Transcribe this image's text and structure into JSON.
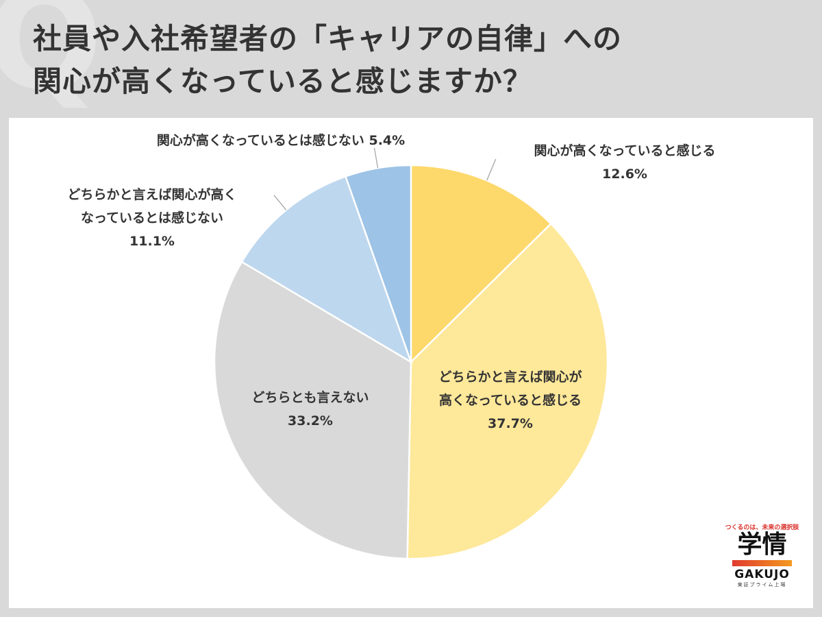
{
  "title": {
    "line1": "社員や入社希望者の「キャリアの自律」への",
    "line2": "関心が高くなっていると感じますか？"
  },
  "chart_data": {
    "type": "pie",
    "start": "12 o'clock, clockwise",
    "slices": [
      {
        "lines": [
          "関心が高くなっていると感じる"
        ],
        "pct": "12.6%",
        "value": 12.6,
        "color": "#fdd86b"
      },
      {
        "lines": [
          "どちらかと言えば関心が",
          "高くなっていると感じる"
        ],
        "pct": "37.7%",
        "value": 37.7,
        "color": "#fee89a"
      },
      {
        "lines": [
          "どちらとも言えない"
        ],
        "pct": "33.2%",
        "value": 33.2,
        "color": "#d9d9d9"
      },
      {
        "lines": [
          "どちらかと言えば関心が高く",
          "なっているとは感じない"
        ],
        "pct": "11.1%",
        "value": 11.1,
        "color": "#bdd7ee"
      },
      {
        "lines": [
          "関心が高くなっているとは感じない"
        ],
        "pct": "5.4%",
        "value": 5.4,
        "color": "#9dc3e6"
      }
    ]
  },
  "brand": {
    "tagline": "つくるのは、未来の選択肢",
    "kanji": "学情",
    "name": "GAKUJO",
    "sub": "東証プライム上場"
  }
}
